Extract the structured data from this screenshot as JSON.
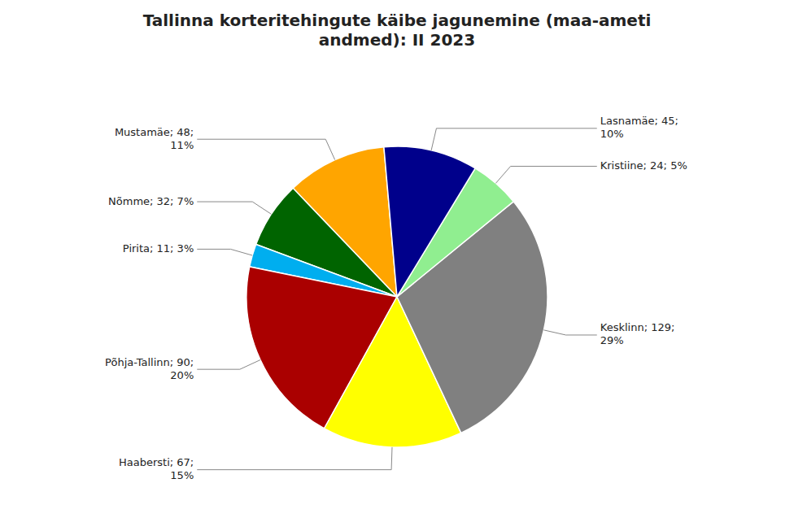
{
  "chart_data": {
    "type": "pie",
    "title": "Tallinna korteritehingute käibe jagunemine (maa-ameti\nandmed): II 2023",
    "categories": [
      "Mustamäe; 48;\n11%",
      "Nõmme; 32; 7%",
      "Pirita; 11; 3%",
      "Põhja-Tallinn; 90;\n20%",
      "Haabersti; 67;\n15%",
      "Kesklinn; 129;\n29%",
      "Kristiine; 24; 5%",
      "Lasnamäe; 45;\n10%"
    ],
    "values": [
      48,
      32,
      11,
      90,
      67,
      129,
      24,
      45
    ],
    "colors": [
      "#FFA500",
      "#006400",
      "#00AEEF",
      "#AA0000",
      "#FFFF00",
      "#808080",
      "#90EE90",
      "#00008B"
    ]
  }
}
